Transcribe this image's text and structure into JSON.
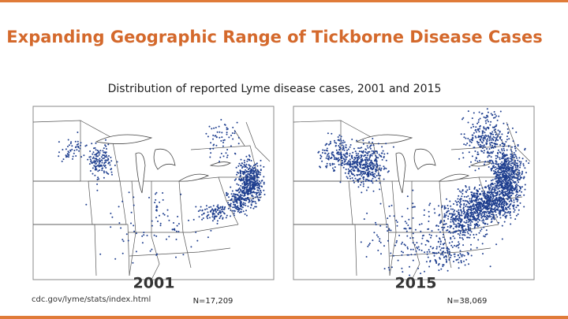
{
  "header": {
    "title": "Expanding Geographic Range  of Tickborne Disease Cases"
  },
  "subtitle": "Distribution of reported Lyme disease cases, 2001 and 2015",
  "maps": [
    {
      "year": "2001",
      "count": "N=17,209"
    },
    {
      "year": "2015",
      "count": "N=38,069"
    }
  ],
  "source": "cdc.gov/lyme/stats/index.html"
}
